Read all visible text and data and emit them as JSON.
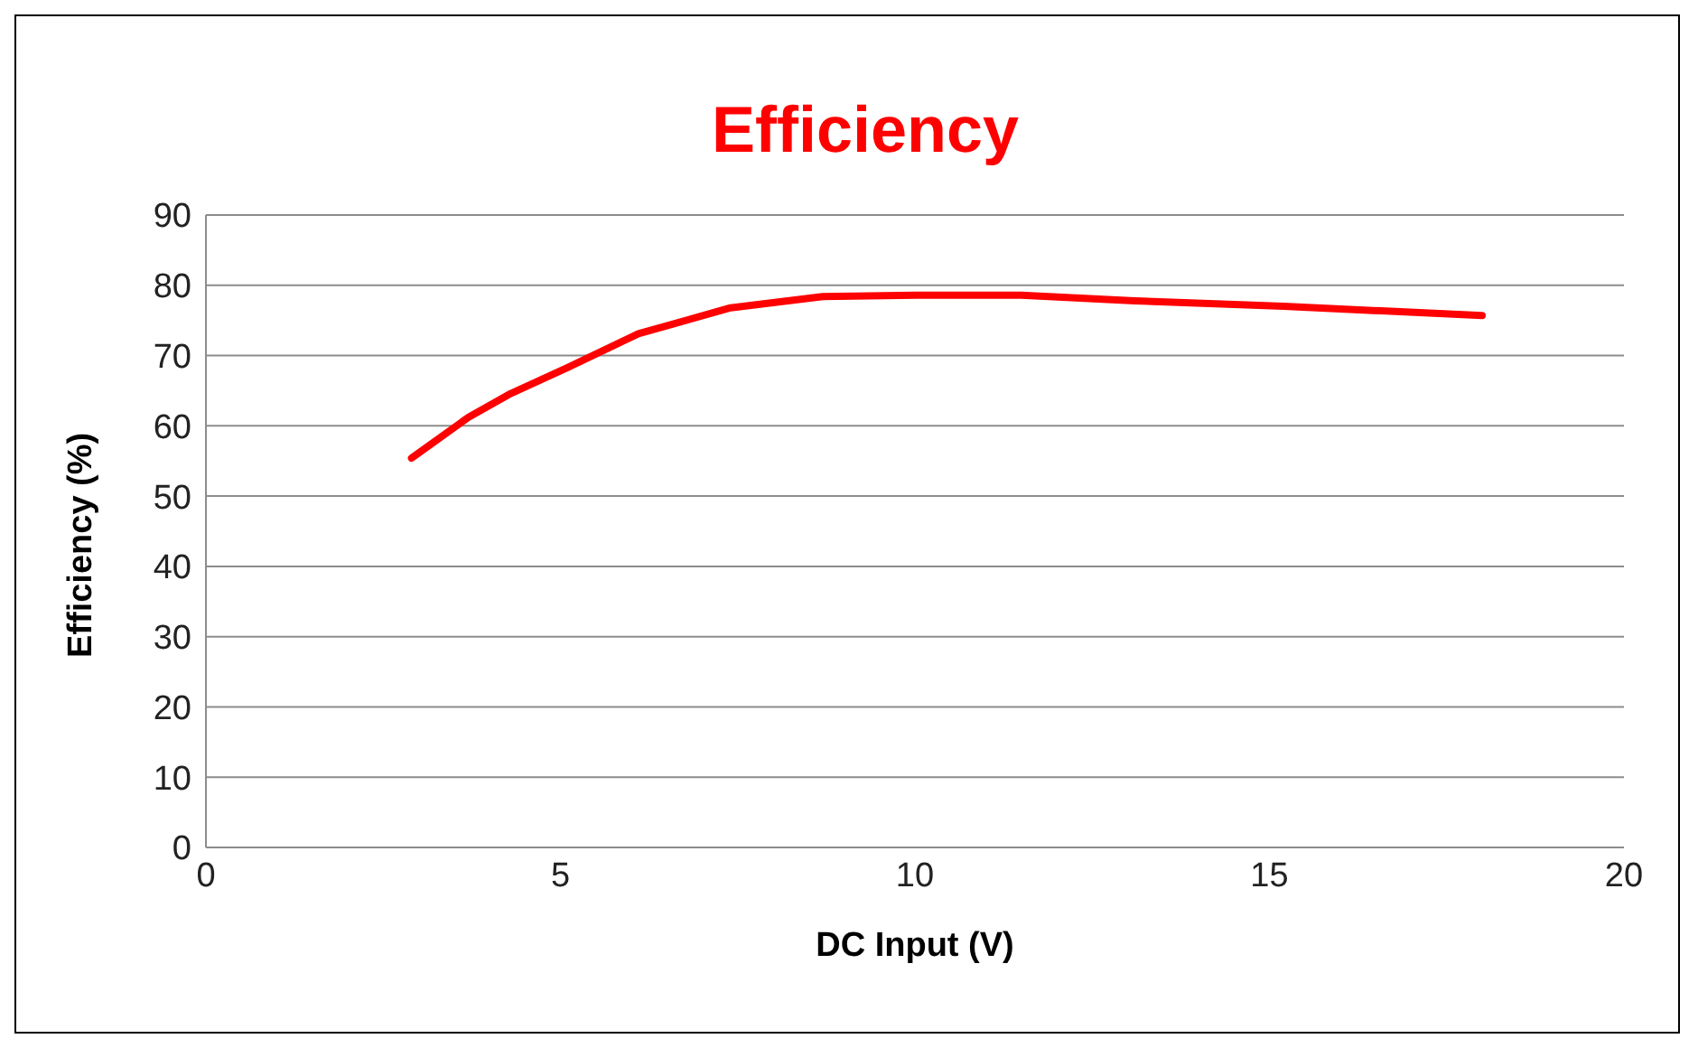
{
  "chart_data": {
    "type": "line",
    "title": "Efficiency",
    "xlabel": "DC Input (V)",
    "ylabel": "Efficiency (%)",
    "series": [
      {
        "color": "#ff0000",
        "x": [
          2.9,
          3.7,
          4.3,
          5.1,
          6.1,
          7.4,
          8.7,
          10,
          11.5,
          13.1,
          15.2,
          18
        ],
        "values": [
          55.4,
          61.2,
          64.6,
          68.3,
          73.1,
          76.8,
          78.4,
          78.6,
          78.6,
          77.8,
          77,
          75.7
        ]
      }
    ],
    "xlim": [
      0,
      20
    ],
    "xticks": [
      0,
      5,
      10,
      15,
      20
    ],
    "ylim": [
      0,
      90
    ],
    "yticks": [
      0,
      10,
      20,
      30,
      40,
      50,
      60,
      70,
      80,
      90
    ],
    "grid": "y",
    "marker": "none",
    "line_style": "solid"
  }
}
